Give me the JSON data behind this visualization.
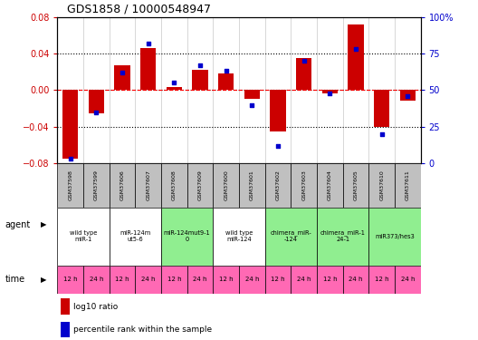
{
  "title": "GDS1858 / 10000548947",
  "samples": [
    "GSM37598",
    "GSM37599",
    "GSM37606",
    "GSM37607",
    "GSM37608",
    "GSM37609",
    "GSM37600",
    "GSM37601",
    "GSM37602",
    "GSM37603",
    "GSM37604",
    "GSM37605",
    "GSM37610",
    "GSM37611"
  ],
  "log10_ratio": [
    -0.075,
    -0.025,
    0.027,
    0.046,
    0.003,
    0.022,
    0.018,
    -0.01,
    -0.045,
    0.035,
    -0.004,
    0.072,
    -0.04,
    -0.012
  ],
  "percentile_rank": [
    3,
    35,
    62,
    82,
    55,
    67,
    63,
    40,
    12,
    70,
    48,
    78,
    20,
    46
  ],
  "ylim_left": [
    -0.08,
    0.08
  ],
  "ylim_right": [
    0,
    100
  ],
  "agents": [
    {
      "label": "wild type\nmiR-1",
      "samples": [
        0,
        1
      ],
      "color": "#ffffff"
    },
    {
      "label": "miR-124m\nut5-6",
      "samples": [
        2,
        3
      ],
      "color": "#ffffff"
    },
    {
      "label": "miR-124mut9-1\n0",
      "samples": [
        4,
        5
      ],
      "color": "#90ee90"
    },
    {
      "label": "wild type\nmiR-124",
      "samples": [
        6,
        7
      ],
      "color": "#ffffff"
    },
    {
      "label": "chimera_miR-\n-124",
      "samples": [
        8,
        9
      ],
      "color": "#90ee90"
    },
    {
      "label": "chimera_miR-1\n24-1",
      "samples": [
        10,
        11
      ],
      "color": "#90ee90"
    },
    {
      "label": "miR373/hes3",
      "samples": [
        12,
        13
      ],
      "color": "#90ee90"
    }
  ],
  "times": [
    "12 h",
    "24 h",
    "12 h",
    "24 h",
    "12 h",
    "24 h",
    "12 h",
    "24 h",
    "12 h",
    "24 h",
    "12 h",
    "24 h",
    "12 h",
    "24 h"
  ],
  "time_color": "#ff69b4",
  "bar_color": "#cc0000",
  "dot_color": "#0000cc",
  "axis_left_color": "#cc0000",
  "axis_right_color": "#0000cc",
  "bar_width": 0.6,
  "background_color": "#ffffff",
  "plot_bg_color": "#ffffff",
  "grid_color": "#c8c8c8",
  "sample_row_color": "#c0c0c0"
}
